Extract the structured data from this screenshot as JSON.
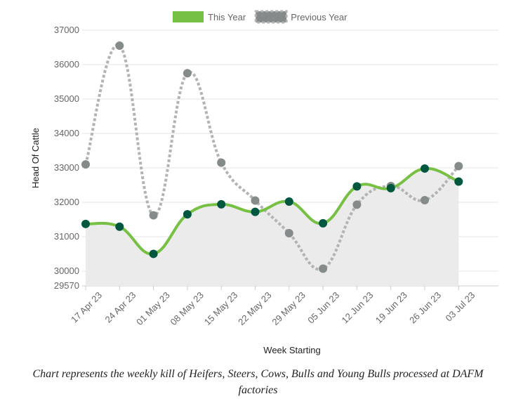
{
  "chart_data": {
    "type": "line",
    "categories": [
      "17 Apr 23",
      "24 Apr 23",
      "01 May 23",
      "08 May 23",
      "15 May 23",
      "22 May 23",
      "29 May 23",
      "05 Jun 23",
      "12 Jun 23",
      "19 Jun 23",
      "26 Jun 23",
      "03 Jul 23"
    ],
    "series": [
      {
        "name": "This Year",
        "color": "#76c043",
        "point_color": "#00573f",
        "fill": "#ebebeb",
        "values": [
          31370,
          31290,
          30500,
          31650,
          31940,
          31720,
          32020,
          31390,
          32460,
          32410,
          32980,
          32600
        ]
      },
      {
        "name": "Previous Year",
        "color": "#b3b3b3",
        "point_color": "#858b8a",
        "dashed": true,
        "values": [
          33100,
          36550,
          31620,
          35750,
          33150,
          32050,
          31100,
          30070,
          31930,
          32470,
          32060,
          33050
        ]
      }
    ],
    "ylabel": "Head Of Cattle",
    "xlabel": "Week Starting",
    "ylim": [
      29570,
      37000
    ],
    "yticks": [
      29570,
      30000,
      31000,
      32000,
      33000,
      34000,
      35000,
      36000,
      37000
    ],
    "grid": true,
    "legend": "top",
    "caption": "Chart represents the weekly kill of Heifers, Steers, Cows, Bulls and Young Bulls processed at DAFM factories"
  }
}
